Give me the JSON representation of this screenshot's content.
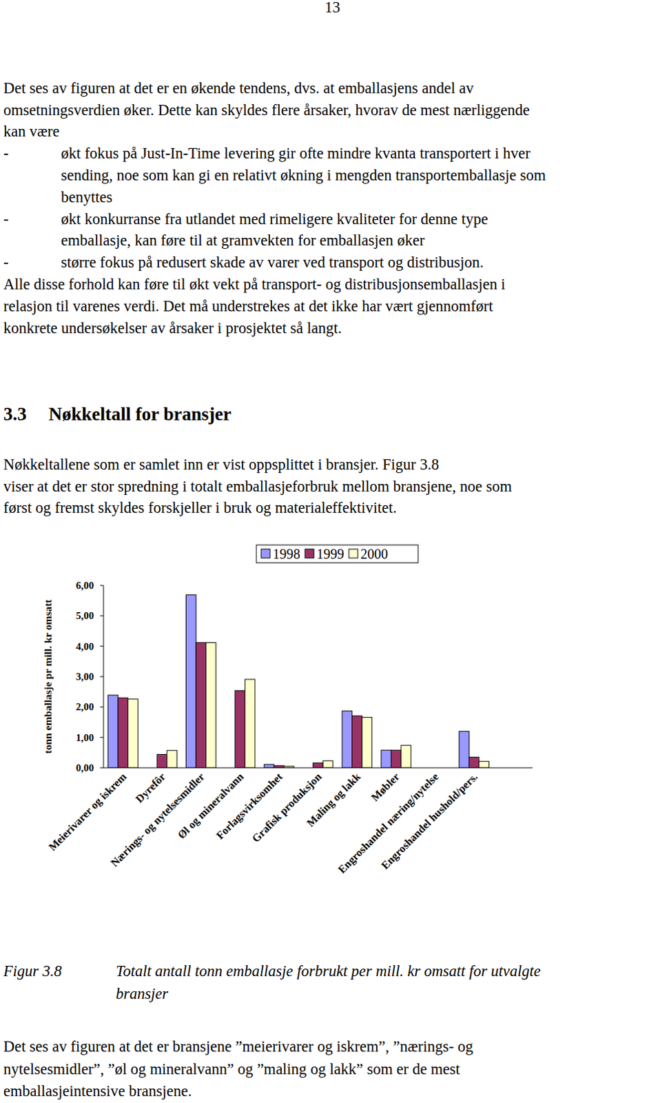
{
  "page_number": "13",
  "intro": [
    "Det ses av figuren at det er en økende tendens, dvs. at emballasjens andel av",
    "omsetningsverdien øker. Dette kan skyldes flere årsaker, hvorav de mest nærliggende",
    "kan være"
  ],
  "bullets": [
    {
      "marker": "-",
      "lines": [
        "økt fokus på Just-In-Time levering gir ofte mindre kvanta transportert i hver",
        "sending, noe som kan gi en relativt økning i mengden transportemballasje som",
        "benyttes"
      ]
    },
    {
      "marker": "-",
      "lines": [
        "økt konkurranse fra utlandet med rimeligere kvaliteter for denne type",
        "emballasje, kan føre til at gramvekten for emballasjen øker"
      ]
    },
    {
      "marker": "-",
      "lines": [
        "større fokus på redusert skade av varer ved transport og distribusjon."
      ]
    }
  ],
  "after_bullets": [
    "Alle disse forhold kan føre til økt vekt på transport- og distribusjonsemballasjen i",
    "relasjon til varenes verdi. Det må understrekes at det ikke har vært gjennomført",
    "konkrete undersøkelser av årsaker i prosjektet så langt."
  ],
  "section": {
    "number": "3.3",
    "title": "Nøkkeltall for bransjer",
    "lines": [
      "Nøkkeltallene som er samlet inn er vist oppsplittet i bransjer. Figur 3.8",
      "viser at det er stor spredning i totalt emballasjeforbruk mellom bransjene, noe som",
      "først og fremst skyldes forskjeller i bruk og materialeffektivitet."
    ]
  },
  "chart_data": {
    "type": "bar",
    "y_label": "tonn emballasje pr mill. kr omsatt",
    "categories": [
      "Meierivarer og iskrem",
      "Dyrefôr",
      "Nærings- og nytelsesmidler",
      "Øl og mineralvann",
      "Forlagsvirksomhet",
      "Grafisk produksjon",
      "Maling og lakk",
      "Møbler",
      "Engroshandel næring/nytelse",
      "Engroshandel hushold/pers."
    ],
    "series": [
      {
        "name": "1998",
        "color": "#9999ff",
        "values": [
          2.39,
          null,
          5.69,
          null,
          0.11,
          null,
          1.87,
          0.58,
          null,
          1.2
        ]
      },
      {
        "name": "1999",
        "color": "#993366",
        "values": [
          2.3,
          0.44,
          4.12,
          2.54,
          0.07,
          0.16,
          1.71,
          0.58,
          null,
          0.35
        ]
      },
      {
        "name": "2000",
        "color": "#ffffcc",
        "values": [
          2.26,
          0.57,
          4.12,
          2.91,
          0.05,
          0.23,
          1.66,
          0.74,
          null,
          0.21
        ]
      }
    ],
    "ylim": [
      0,
      6
    ],
    "yticks": [
      {
        "value": 0,
        "label": "0,00"
      },
      {
        "value": 1,
        "label": "1,00"
      },
      {
        "value": 2,
        "label": "2,00"
      },
      {
        "value": 3,
        "label": "3,00"
      },
      {
        "value": 4,
        "label": "4,00"
      },
      {
        "value": 5,
        "label": "5,00"
      },
      {
        "value": 6,
        "label": "6,00"
      }
    ],
    "grid": false,
    "legend": "top"
  },
  "caption": {
    "label": "Figur 3.8",
    "lines": [
      "Totalt antall tonn emballasje forbrukt per mill. kr omsatt for utvalgte",
      "bransjer"
    ]
  },
  "conclusion": [
    "Det ses av figuren at det er bransjene ”meierivarer og iskrem”,  ”nærings- og",
    "nytelsesmidler”, ”øl og mineralvann” og ”maling og lakk” som er de mest",
    "emballasjeintensive bransjene."
  ]
}
